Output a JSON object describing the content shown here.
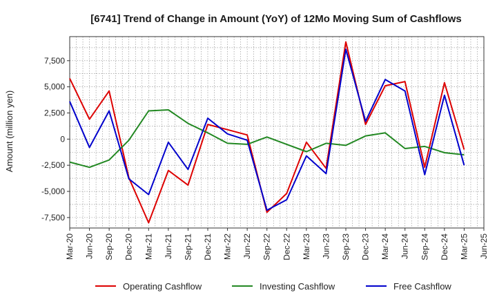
{
  "chart_data": {
    "type": "line",
    "title": "[6741]  Trend of Change in Amount (YoY) of 12Mo Moving Sum of Cashflows",
    "xlabel": "",
    "ylabel": "Amount (million yen)",
    "ylim": [
      -8500,
      9800
    ],
    "yticks": [
      7500,
      5000,
      2500,
      0,
      -2500,
      -5000,
      -7500
    ],
    "ytick_labels": [
      "7,500",
      "5,000",
      "2,500",
      "0",
      "-2,500",
      "-5,000",
      "-7,500"
    ],
    "categories": [
      "Mar-20",
      "Jun-20",
      "Sep-20",
      "Dec-20",
      "Mar-21",
      "Jun-21",
      "Sep-21",
      "Dec-21",
      "Mar-22",
      "Jun-22",
      "Sep-22",
      "Dec-22",
      "Mar-23",
      "Jun-23",
      "Sep-23",
      "Dec-23",
      "Mar-24",
      "Jun-24",
      "Sep-24",
      "Dec-24",
      "Mar-25",
      "Jun-25"
    ],
    "series": [
      {
        "name": "Operating Cashflow",
        "color": "#dd0000",
        "values": [
          5800,
          1900,
          4600,
          -3700,
          -8000,
          -3000,
          -4400,
          1400,
          900,
          400,
          -7000,
          -5200,
          -300,
          -2800,
          9300,
          1400,
          5100,
          5500,
          -2700,
          5400,
          -1000,
          null
        ]
      },
      {
        "name": "Investing Cashflow",
        "color": "#228822",
        "values": [
          -2200,
          -2700,
          -2000,
          -100,
          2700,
          2800,
          1500,
          600,
          -400,
          -500,
          200,
          -500,
          -1200,
          -400,
          -600,
          300,
          600,
          -900,
          -700,
          -1300,
          -1500,
          null
        ]
      },
      {
        "name": "Free Cashflow",
        "color": "#0000cc",
        "values": [
          3600,
          -800,
          2700,
          -3800,
          -5300,
          -300,
          -2900,
          2000,
          500,
          -100,
          -6800,
          -5800,
          -1600,
          -3300,
          8600,
          1700,
          5700,
          4600,
          -3400,
          4200,
          -2500,
          null
        ]
      }
    ],
    "legend": [
      "Operating Cashflow",
      "Investing Cashflow",
      "Free Cashflow"
    ],
    "legend_position": "bottom",
    "grid": true
  }
}
